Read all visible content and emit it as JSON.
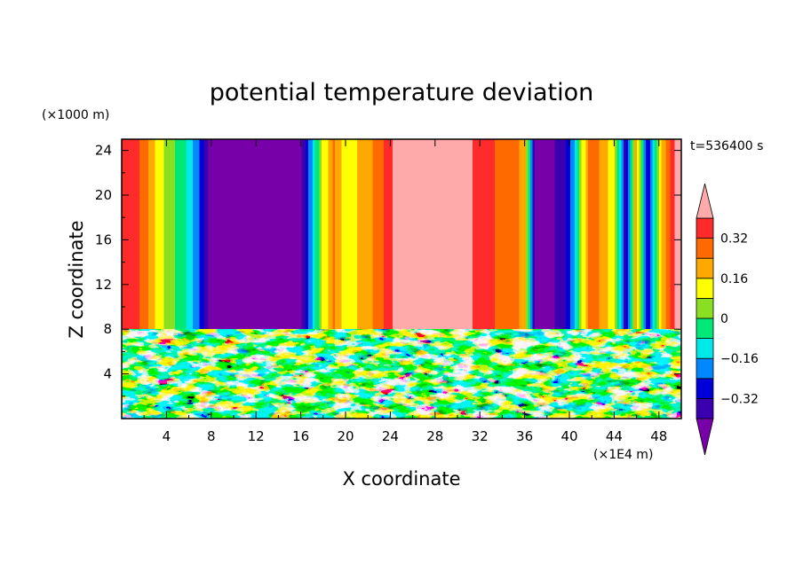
{
  "chart_data": {
    "type": "heatmap",
    "title": "potential temperature deviation",
    "xlabel": "X coordinate",
    "ylabel": "Z coordinate",
    "x_unit": "(×1E4 m)",
    "y_unit": "(×1000 m)",
    "time_label": "t=536400 s",
    "xlim": [
      0,
      50
    ],
    "ylim": [
      0,
      25
    ],
    "x_ticks": [
      "4",
      "8",
      "12",
      "16",
      "20",
      "24",
      "28",
      "32",
      "36",
      "40",
      "44",
      "48"
    ],
    "y_ticks": [
      "4",
      "8",
      "12",
      "16",
      "20",
      "24"
    ],
    "colorbar": {
      "labels": [
        "0.32",
        "0.16",
        "0",
        "−0.16",
        "−0.32"
      ],
      "levels": [
        -0.4,
        -0.32,
        -0.24,
        -0.16,
        -0.08,
        0,
        0.08,
        0.16,
        0.24,
        0.32,
        0.4
      ],
      "colors": [
        "#7800a8",
        "#3a00b0",
        "#0000d8",
        "#0088ff",
        "#00e8e8",
        "#00e878",
        "#8ae020",
        "#ffff00",
        "#ffa800",
        "#ff6a00",
        "#ff2a2a",
        "#ffaaaa"
      ]
    },
    "upper_layer_profile": {
      "x": [
        0,
        1,
        2,
        4,
        6,
        7,
        8,
        10,
        12,
        14,
        16,
        17,
        18,
        19,
        20,
        22,
        24,
        25,
        26,
        28,
        30,
        32,
        34,
        35,
        36,
        37,
        38,
        40,
        41,
        42,
        44,
        45,
        46,
        47,
        48,
        49,
        50
      ],
      "value": [
        0.33,
        0.36,
        0.28,
        0.05,
        -0.1,
        -0.25,
        -0.45,
        -0.45,
        -0.45,
        -0.45,
        -0.45,
        -0.15,
        0.1,
        0.25,
        0.12,
        0.2,
        0.36,
        0.5,
        0.5,
        0.5,
        0.5,
        0.36,
        0.3,
        0.28,
        0.2,
        -0.45,
        -0.45,
        -0.3,
        0.05,
        0.3,
        0.1,
        -0.35,
        0.2,
        -0.3,
        0.1,
        0.3,
        0.5
      ]
    },
    "lower_layer_top": 8
  }
}
